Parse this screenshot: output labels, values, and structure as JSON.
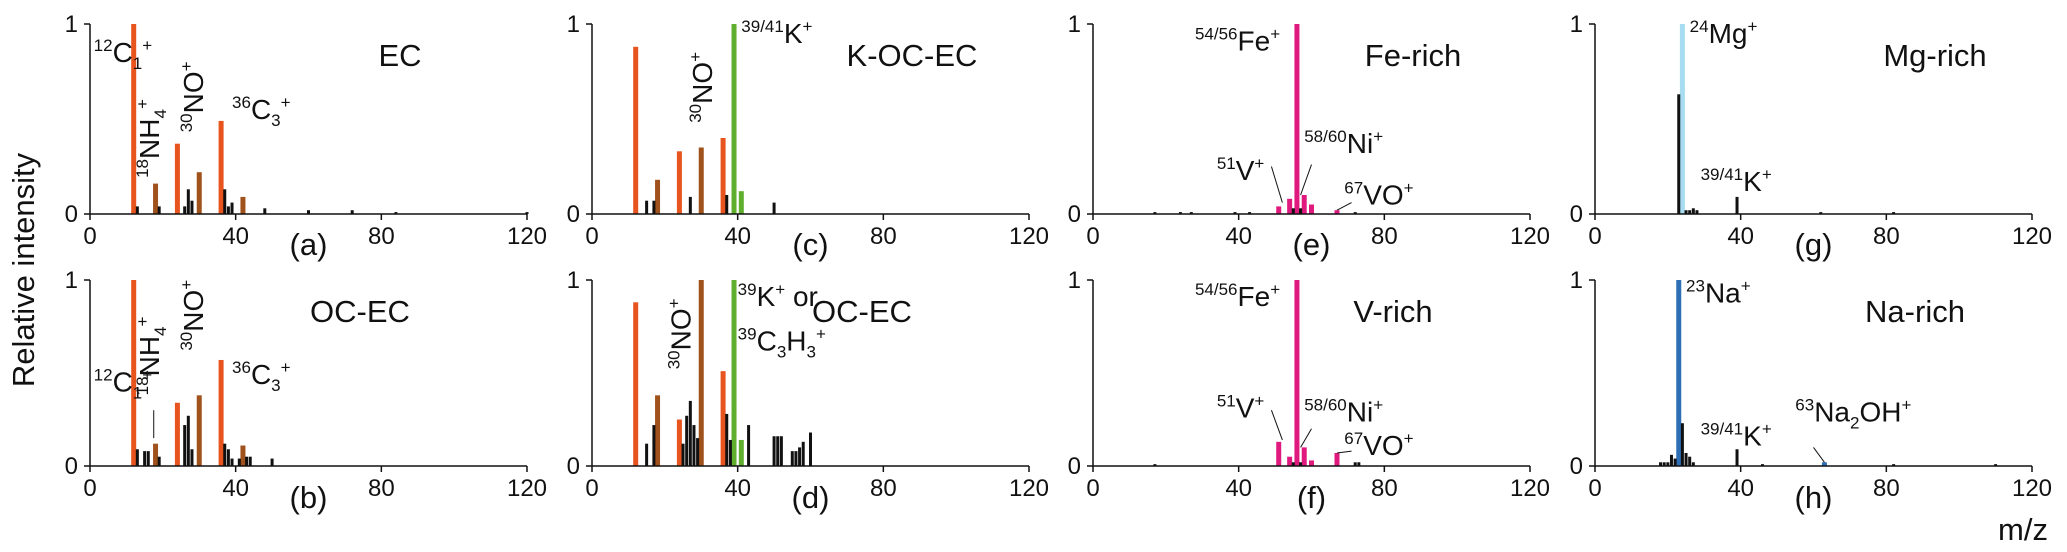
{
  "figure": {
    "ylabel": "Relative intensity",
    "xunit_label": "m/z"
  },
  "chart_data": [
    {
      "type": "bar",
      "panel": "(a)",
      "name": "EC",
      "xlim": [
        0,
        120
      ],
      "ylim": [
        0,
        1
      ],
      "xticks": [
        "0",
        "40",
        "80",
        "120"
      ],
      "yticks": [
        "0",
        "1"
      ],
      "series": [
        {
          "color": "#e8541e",
          "x": [
            12,
            24,
            36
          ],
          "y": [
            1.0,
            0.37,
            0.49
          ]
        },
        {
          "color": "#a0521d",
          "x": [
            18,
            30,
            42
          ],
          "y": [
            0.16,
            0.22,
            0.09
          ]
        },
        {
          "color": "#111111",
          "x": [
            13,
            19,
            26,
            27,
            28,
            37,
            38,
            39,
            48,
            60,
            72,
            84,
            120
          ],
          "y": [
            0.04,
            0.04,
            0.04,
            0.13,
            0.07,
            0.13,
            0.04,
            0.06,
            0.03,
            0.02,
            0.02,
            0.01,
            0.01
          ]
        }
      ],
      "annotations": [
        {
          "label_sup": "12",
          "label_base": "C",
          "label_sub": "1",
          "label_charge": "+"
        },
        {
          "label_sup": "18",
          "label_base": "NH",
          "label_sub": "4",
          "label_charge": "+"
        },
        {
          "label_sup": "30",
          "label_base": "NO",
          "label_sub": "",
          "label_charge": "+"
        },
        {
          "label_sup": "36",
          "label_base": "C",
          "label_sub": "3",
          "label_charge": "+"
        }
      ]
    },
    {
      "type": "bar",
      "panel": "(b)",
      "name": "OC-EC",
      "xlim": [
        0,
        120
      ],
      "ylim": [
        0,
        1
      ],
      "xticks": [
        "0",
        "40",
        "80",
        "120"
      ],
      "yticks": [
        "0",
        "1"
      ],
      "series": [
        {
          "color": "#e8541e",
          "x": [
            12,
            24,
            36
          ],
          "y": [
            1.0,
            0.34,
            0.57
          ]
        },
        {
          "color": "#a0521d",
          "x": [
            18,
            30,
            42
          ],
          "y": [
            0.12,
            0.38,
            0.11
          ]
        },
        {
          "color": "#111111",
          "x": [
            13,
            15,
            16,
            19,
            26,
            27,
            28,
            37,
            38,
            39,
            41,
            43,
            44,
            50
          ],
          "y": [
            0.09,
            0.08,
            0.08,
            0.05,
            0.22,
            0.27,
            0.09,
            0.12,
            0.09,
            0.04,
            0.04,
            0.05,
            0.05,
            0.04
          ]
        }
      ],
      "annotations": [
        {
          "label_sup": "12",
          "label_base": "C",
          "label_sub": "1",
          "label_charge": "+"
        },
        {
          "label_sup": "18",
          "label_base": "NH",
          "label_sub": "4",
          "label_charge": "+"
        },
        {
          "label_sup": "30",
          "label_base": "NO",
          "label_sub": "",
          "label_charge": "+"
        },
        {
          "label_sup": "36",
          "label_base": "C",
          "label_sub": "3",
          "label_charge": "+"
        }
      ]
    },
    {
      "type": "bar",
      "panel": "(c)",
      "name": "K-OC-EC",
      "xlim": [
        0,
        120
      ],
      "ylim": [
        0,
        1
      ],
      "xticks": [
        "0",
        "40",
        "80",
        "120"
      ],
      "yticks": [
        "0",
        "1"
      ],
      "series": [
        {
          "color": "#e8541e",
          "x": [
            12,
            24,
            36
          ],
          "y": [
            0.88,
            0.33,
            0.4
          ]
        },
        {
          "color": "#a0521d",
          "x": [
            18,
            30
          ],
          "y": [
            0.18,
            0.35
          ]
        },
        {
          "color": "#5fae2e",
          "x": [
            39,
            41
          ],
          "y": [
            1.0,
            0.12
          ]
        },
        {
          "color": "#111111",
          "x": [
            15,
            17,
            27,
            37,
            50
          ],
          "y": [
            0.07,
            0.07,
            0.09,
            0.1,
            0.06
          ]
        }
      ],
      "annotations": [
        {
          "label_sup": "30",
          "label_base": "NO",
          "label_sub": "",
          "label_charge": "+"
        },
        {
          "label_sup": "39/41",
          "label_base": "K",
          "label_sub": "",
          "label_charge": "+"
        }
      ]
    },
    {
      "type": "bar",
      "panel": "(d)",
      "name": "OC-EC",
      "xlim": [
        0,
        120
      ],
      "ylim": [
        0,
        1
      ],
      "xticks": [
        "0",
        "40",
        "80",
        "120"
      ],
      "yticks": [
        "0",
        "1"
      ],
      "series": [
        {
          "color": "#e8541e",
          "x": [
            12,
            24,
            36
          ],
          "y": [
            0.88,
            0.25,
            0.51
          ]
        },
        {
          "color": "#a0521d",
          "x": [
            18,
            30
          ],
          "y": [
            0.38,
            1.0
          ]
        },
        {
          "color": "#5fae2e",
          "x": [
            39,
            41
          ],
          "y": [
            1.0,
            0.14
          ]
        },
        {
          "color": "#111111",
          "x": [
            15,
            17,
            25,
            26,
            27,
            28,
            29,
            37,
            38,
            43,
            50,
            51,
            52,
            55,
            56,
            57,
            58,
            60
          ],
          "y": [
            0.12,
            0.22,
            0.12,
            0.27,
            0.35,
            0.22,
            0.15,
            0.28,
            0.14,
            0.22,
            0.16,
            0.16,
            0.16,
            0.08,
            0.08,
            0.1,
            0.13,
            0.18
          ]
        }
      ],
      "annotations": [
        {
          "label_sup": "30",
          "label_base": "NO",
          "label_sub": "",
          "label_charge": "+"
        },
        {
          "label_sup": "39",
          "label_base": "K",
          "label_sub": "",
          "label_charge": "+",
          "suffix": " or"
        },
        {
          "label_sup": "39",
          "label_base": "C",
          "label_sub": "3",
          "label_base2": "H",
          "label_sub2": "3",
          "label_charge": "+"
        }
      ]
    },
    {
      "type": "bar",
      "panel": "(e)",
      "name": "Fe-rich",
      "xlim": [
        0,
        120
      ],
      "ylim": [
        0,
        1
      ],
      "xticks": [
        "0",
        "40",
        "80",
        "120"
      ],
      "yticks": [
        "0",
        "1"
      ],
      "series": [
        {
          "color": "#e0197f",
          "x": [
            51,
            54,
            56,
            58,
            60,
            67
          ],
          "y": [
            0.04,
            0.08,
            1.0,
            0.1,
            0.05,
            0.02
          ]
        },
        {
          "color": "#111111",
          "x": [
            17,
            24,
            27,
            39,
            43,
            55,
            57,
            72
          ],
          "y": [
            0.01,
            0.01,
            0.01,
            0.01,
            0.01,
            0.03,
            0.03,
            0.01
          ]
        }
      ],
      "annotations": [
        {
          "label_sup": "54/56",
          "label_base": "Fe",
          "label_sub": "",
          "label_charge": "+"
        },
        {
          "label_sup": "51",
          "label_base": "V",
          "label_sub": "",
          "label_charge": "+"
        },
        {
          "label_sup": "58/60",
          "label_base": "Ni",
          "label_sub": "",
          "label_charge": "+"
        },
        {
          "label_sup": "67",
          "label_base": "VO",
          "label_sub": "",
          "label_charge": "+"
        }
      ]
    },
    {
      "type": "bar",
      "panel": "(f)",
      "name": "V-rich",
      "xlim": [
        0,
        120
      ],
      "ylim": [
        0,
        1
      ],
      "xticks": [
        "0",
        "40",
        "80",
        "120"
      ],
      "yticks": [
        "0",
        "1"
      ],
      "series": [
        {
          "color": "#e0197f",
          "x": [
            51,
            54,
            56,
            58,
            60,
            67
          ],
          "y": [
            0.13,
            0.05,
            1.0,
            0.1,
            0.03,
            0.07
          ]
        },
        {
          "color": "#111111",
          "x": [
            17,
            55,
            57,
            72,
            73
          ],
          "y": [
            0.01,
            0.02,
            0.02,
            0.02,
            0.02
          ]
        }
      ],
      "annotations": [
        {
          "label_sup": "54/56",
          "label_base": "Fe",
          "label_sub": "",
          "label_charge": "+"
        },
        {
          "label_sup": "51",
          "label_base": "V",
          "label_sub": "",
          "label_charge": "+"
        },
        {
          "label_sup": "58/60",
          "label_base": "Ni",
          "label_sub": "",
          "label_charge": "+"
        },
        {
          "label_sup": "67",
          "label_base": "VO",
          "label_sub": "",
          "label_charge": "+"
        }
      ]
    },
    {
      "type": "bar",
      "panel": "(g)",
      "name": "Mg-rich",
      "xlim": [
        0,
        120
      ],
      "ylim": [
        0,
        1
      ],
      "xticks": [
        "0",
        "40",
        "80",
        "120"
      ],
      "yticks": [
        "0",
        "1"
      ],
      "series": [
        {
          "color": "#a8dcf0",
          "x": [
            24
          ],
          "y": [
            1.0
          ]
        },
        {
          "color": "#111111",
          "x": [
            23,
            25,
            26,
            27,
            28,
            39,
            62,
            82
          ],
          "y": [
            0.63,
            0.02,
            0.02,
            0.03,
            0.02,
            0.09,
            0.01,
            0.01
          ]
        }
      ],
      "annotations": [
        {
          "label_sup": "24",
          "label_base": "Mg",
          "label_sub": "",
          "label_charge": "+"
        },
        {
          "label_sup": "39/41",
          "label_base": "K",
          "label_sub": "",
          "label_charge": "+"
        }
      ]
    },
    {
      "type": "bar",
      "panel": "(h)",
      "name": "Na-rich",
      "xlim": [
        0,
        120
      ],
      "ylim": [
        0,
        1
      ],
      "xticks": [
        "0",
        "40",
        "80",
        "120"
      ],
      "yticks": [
        "0",
        "1"
      ],
      "series": [
        {
          "color": "#2e6eb5",
          "x": [
            23,
            63
          ],
          "y": [
            1.0,
            0.02
          ]
        },
        {
          "color": "#111111",
          "x": [
            18,
            19,
            20,
            21,
            22,
            24,
            25,
            26,
            27,
            39,
            46,
            82,
            110
          ],
          "y": [
            0.02,
            0.02,
            0.02,
            0.06,
            0.04,
            0.23,
            0.07,
            0.05,
            0.02,
            0.09,
            0.01,
            0.01,
            0.01
          ]
        }
      ],
      "annotations": [
        {
          "label_sup": "23",
          "label_base": "Na",
          "label_sub": "",
          "label_charge": "+"
        },
        {
          "label_sup": "39/41",
          "label_base": "K",
          "label_sub": "",
          "label_charge": "+"
        },
        {
          "label_sup": "63",
          "label_base": "Na",
          "label_sub": "2",
          "label_base2": "OH",
          "label_sub2": "",
          "label_charge": "+"
        }
      ]
    }
  ]
}
